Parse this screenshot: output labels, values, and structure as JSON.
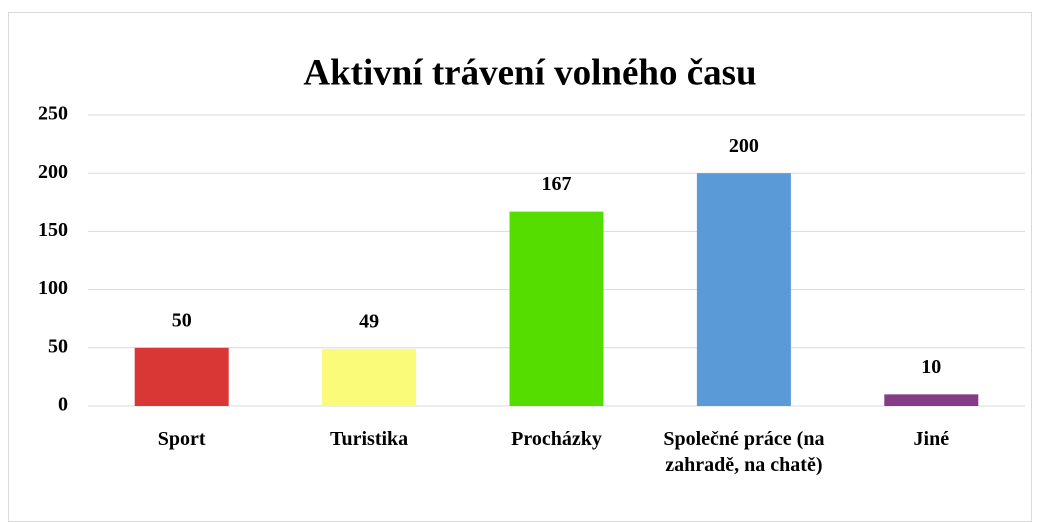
{
  "chart_data": {
    "type": "bar",
    "title": "Aktivní trávení volného času",
    "categories": [
      "Sport",
      "Turistika",
      "Procházky",
      "Společné práce (na zahradě, na chatě)",
      "Jiné"
    ],
    "values": [
      50,
      49,
      167,
      200,
      10
    ],
    "colors": [
      "#d93636",
      "#fbfb7a",
      "#55dd00",
      "#5a9ad6",
      "#833c85"
    ],
    "ylim": [
      0,
      250
    ],
    "yticks": [
      0,
      50,
      100,
      150,
      200,
      250
    ],
    "grid": true
  }
}
